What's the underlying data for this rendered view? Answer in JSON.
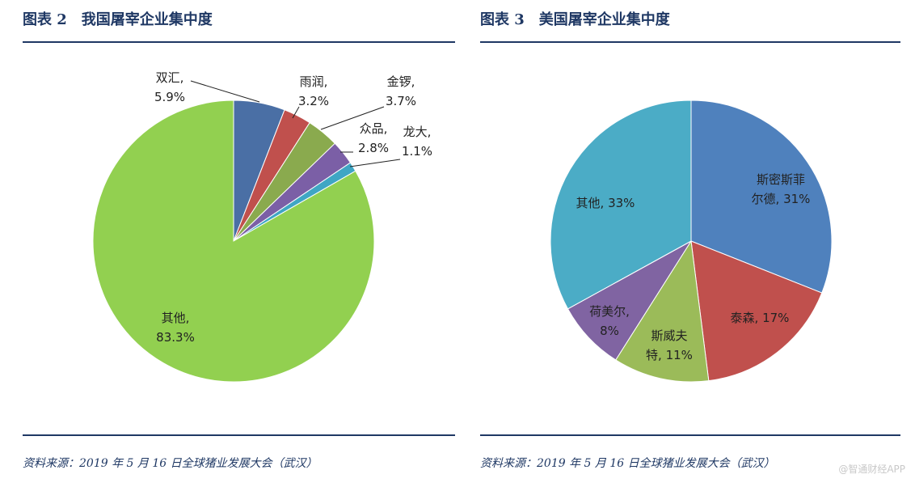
{
  "left_panel": {
    "figure_no": "图表 2",
    "title": "我国屠宰企业集中度",
    "source": "资料来源：2019 年 5 月 16 日全球猪业发展大会（武汉）"
  },
  "right_panel": {
    "figure_no": "图表 3",
    "title": "美国屠宰企业集中度",
    "source": "资料来源：2019 年 5 月 16 日全球猪业发展大会（武汉）"
  },
  "watermark": "@智通财经APP",
  "chart_data": [
    {
      "type": "pie",
      "title": "我国屠宰企业集中度",
      "slices": [
        {
          "name": "双汇",
          "label_line1": "双汇,",
          "label_line2": "5.9%",
          "value": 5.9,
          "color": "#4a6fa5"
        },
        {
          "name": "雨润",
          "label_line1": "雨润,",
          "label_line2": "3.2%",
          "value": 3.2,
          "color": "#c0504d"
        },
        {
          "name": "金锣",
          "label_line1": "金锣,",
          "label_line2": "3.7%",
          "value": 3.7,
          "color": "#8aaa4e"
        },
        {
          "name": "众品",
          "label_line1": "众品,",
          "label_line2": "2.8%",
          "value": 2.8,
          "color": "#7b5fa6"
        },
        {
          "name": "龙大",
          "label_line1": "龙大,",
          "label_line2": "1.1%",
          "value": 1.1,
          "color": "#3fa6c4"
        },
        {
          "name": "其他",
          "label_line1": "其他,",
          "label_line2": "83.3%",
          "value": 83.3,
          "color": "#92d050"
        }
      ]
    },
    {
      "type": "pie",
      "title": "美国屠宰企业集中度",
      "slices": [
        {
          "name": "斯密斯菲尔德",
          "label_line1": "斯密斯菲",
          "label_line2": "尔德, 31%",
          "value": 31,
          "color": "#4f81bd"
        },
        {
          "name": "泰森",
          "label_line1": "泰森, 17%",
          "label_line2": "",
          "value": 17,
          "color": "#c0504d"
        },
        {
          "name": "斯威夫特",
          "label_line1": "斯威夫",
          "label_line2": "特, 11%",
          "value": 11,
          "color": "#9bbb59"
        },
        {
          "name": "荷美尔",
          "label_line1": "荷美尔,",
          "label_line2": "8%",
          "value": 8,
          "color": "#8064a2"
        },
        {
          "name": "其他",
          "label_line1": "其他, 33%",
          "label_line2": "",
          "value": 33,
          "color": "#4bacc6"
        }
      ]
    }
  ]
}
